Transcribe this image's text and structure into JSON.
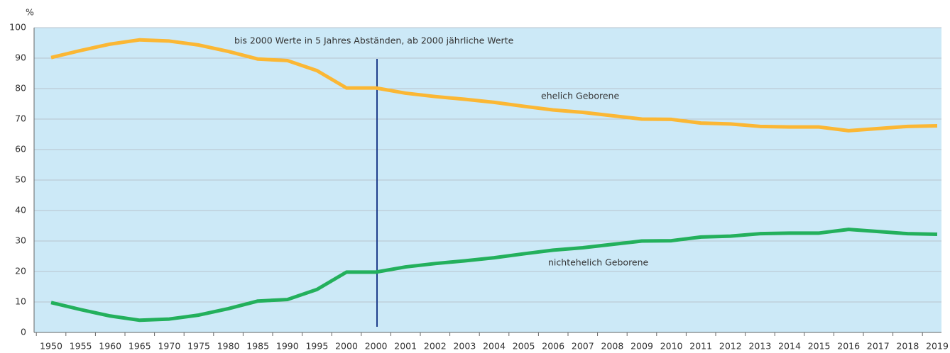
{
  "chart_data": {
    "type": "line",
    "y_label": "%",
    "annotation": "bis 2000 Werte in 5 Jahres Abständen, ab 2000 jährliche Werte",
    "categories": [
      "1950",
      "1955",
      "1960",
      "1965",
      "1970",
      "1975",
      "1980",
      "1985",
      "1990",
      "1995",
      "2000",
      "2000",
      "2001",
      "2002",
      "2003",
      "2004",
      "2005",
      "2006",
      "2007",
      "2008",
      "2009",
      "2010",
      "2011",
      "2012",
      "2013",
      "2014",
      "2015",
      "2016",
      "2017",
      "2018",
      "2019"
    ],
    "series": [
      {
        "name": "ehelich Geborene",
        "color": "#fbb734",
        "values": [
          90.2,
          92.5,
          94.6,
          96.0,
          95.6,
          94.3,
          92.2,
          89.7,
          89.2,
          85.9,
          80.2,
          80.2,
          78.5,
          77.4,
          76.5,
          75.5,
          74.2,
          73.0,
          72.2,
          71.1,
          70.0,
          69.9,
          68.7,
          68.4,
          67.6,
          67.4,
          67.4,
          66.2,
          66.9,
          67.6,
          67.8
        ]
      },
      {
        "name": "nichtehelich Geborene",
        "color": "#23b05c",
        "values": [
          9.8,
          7.5,
          5.4,
          4.0,
          4.4,
          5.7,
          7.8,
          10.3,
          10.8,
          14.1,
          19.8,
          19.8,
          21.5,
          22.6,
          23.5,
          24.5,
          25.8,
          27.0,
          27.8,
          28.9,
          30.0,
          30.1,
          31.3,
          31.6,
          32.4,
          32.6,
          32.6,
          33.8,
          33.1,
          32.4,
          32.2
        ]
      }
    ],
    "ylim": [
      0,
      100
    ],
    "yticks": [
      0,
      10,
      20,
      30,
      40,
      50,
      60,
      70,
      80,
      90,
      100
    ],
    "grid": true
  }
}
